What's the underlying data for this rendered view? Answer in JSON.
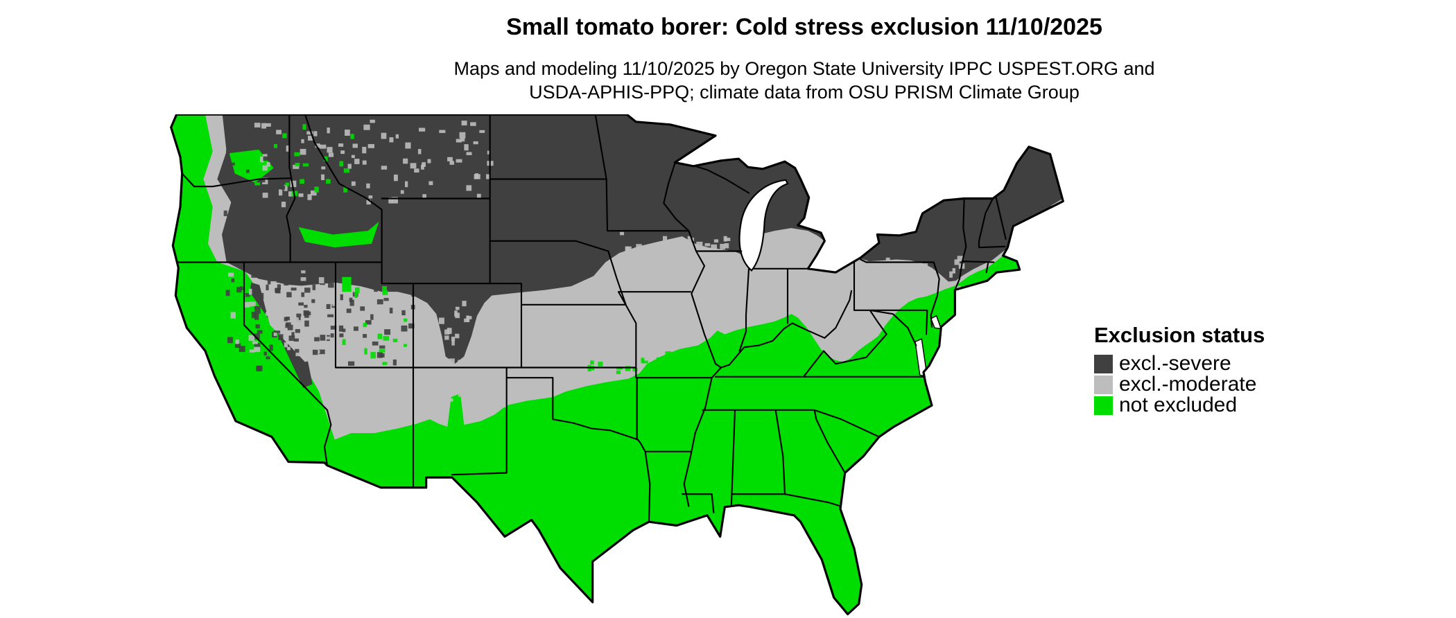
{
  "title": "Small tomato borer: Cold stress exclusion 11/10/2025",
  "subtitle_line1": "Maps and modeling 11/10/2025 by Oregon State University IPPC USPEST.ORG and",
  "subtitle_line2": "USDA-APHIS-PPQ; climate data from OSU PRISM Climate Group",
  "legend": {
    "title": "Exclusion status",
    "items": [
      {
        "label": "excl.-severe",
        "color": "#404040"
      },
      {
        "label": "excl.-moderate",
        "color": "#bdbdbd"
      },
      {
        "label": "not excluded",
        "color": "#00dd00"
      }
    ]
  },
  "map": {
    "region": "Contiguous United States",
    "colors": {
      "severe": "#404040",
      "moderate": "#bdbdbd",
      "not_excluded": "#00dd00",
      "water": "#ffffff",
      "state_border": "#000000"
    }
  }
}
